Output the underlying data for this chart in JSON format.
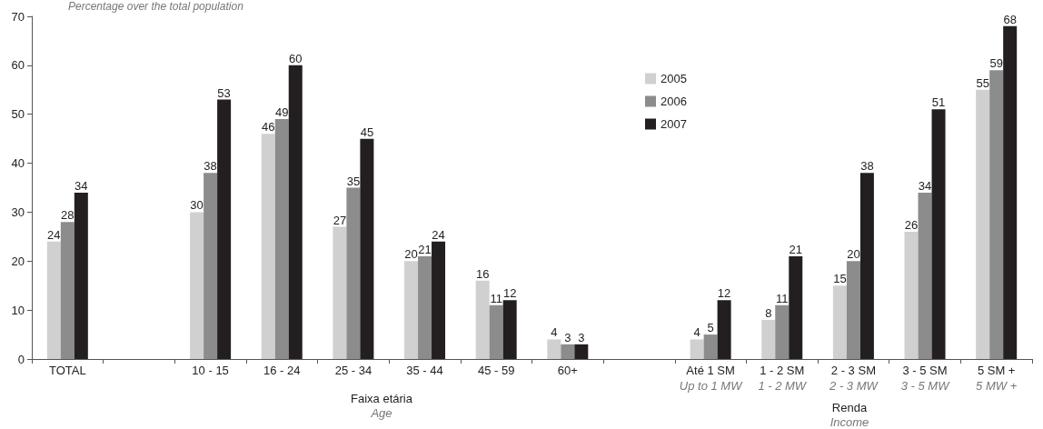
{
  "chart_data": {
    "type": "bar",
    "subtitle": "Percentage over the total population",
    "categories": [
      "TOTAL",
      null,
      "10 - 15",
      "16 - 24",
      "25 - 34",
      "35 - 44",
      "45 - 59",
      "60+",
      null,
      "Até 1 SM\nUp to 1 MW",
      "1 - 2 SM\n1 - 2 MW",
      "2 - 3 SM\n2 - 3 MW",
      "3 - 5 SM\n3 - 5 MW",
      "5 SM +\n5 MW +"
    ],
    "series": [
      {
        "name": "2005",
        "color": "#d0d0d0",
        "values": [
          24,
          null,
          30,
          46,
          27,
          20,
          16,
          4,
          null,
          4,
          8,
          15,
          26,
          55
        ]
      },
      {
        "name": "2006",
        "color": "#8c8c8c",
        "values": [
          28,
          null,
          38,
          49,
          35,
          21,
          11,
          3,
          null,
          5,
          11,
          20,
          34,
          59
        ]
      },
      {
        "name": "2007",
        "color": "#231f20",
        "values": [
          34,
          null,
          53,
          60,
          45,
          24,
          12,
          3,
          null,
          12,
          21,
          38,
          51,
          68
        ]
      }
    ],
    "ylim": [
      0,
      70
    ],
    "yticks": [
      0,
      10,
      20,
      30,
      40,
      50,
      60,
      70
    ],
    "annotations": [
      "Faixa etária",
      "Age",
      "Renda",
      "Income"
    ],
    "data_labels": true,
    "legend": "top",
    "grid": false
  }
}
